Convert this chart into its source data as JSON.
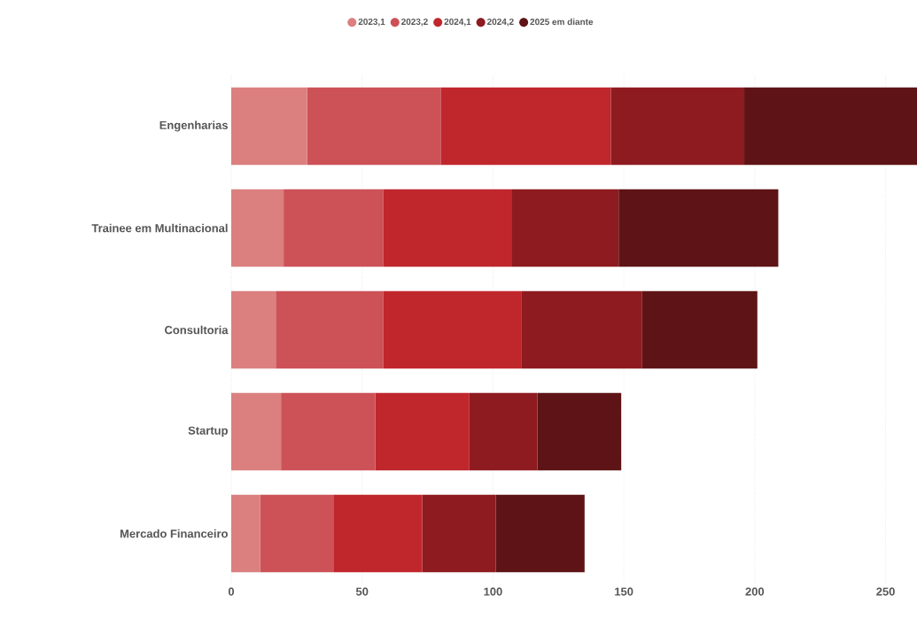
{
  "chart_data": {
    "type": "bar",
    "orientation": "horizontal",
    "stacked": true,
    "categories": [
      "Engenharias",
      "Trainee em Multinacional",
      "Consultoria",
      "Startup",
      "Mercado Financeiro"
    ],
    "series": [
      {
        "name": "2023,1",
        "color": "#db7f7f",
        "values": [
          29,
          20,
          17,
          19,
          11
        ]
      },
      {
        "name": "2023,2",
        "color": "#cc5257",
        "values": [
          51,
          38,
          41,
          36,
          28
        ]
      },
      {
        "name": "2024,1",
        "color": "#c0272d",
        "values": [
          65,
          49,
          53,
          36,
          34
        ]
      },
      {
        "name": "2024,2",
        "color": "#8e1b20",
        "values": [
          51,
          41,
          46,
          26,
          28
        ]
      },
      {
        "name": "2025 em diante",
        "color": "#5e1416",
        "values": [
          66,
          61,
          44,
          32,
          34
        ]
      }
    ],
    "xlim": [
      0,
      262
    ],
    "xticks": [
      0,
      50,
      100,
      150,
      200,
      250
    ],
    "grid": "x",
    "legend": "top"
  }
}
